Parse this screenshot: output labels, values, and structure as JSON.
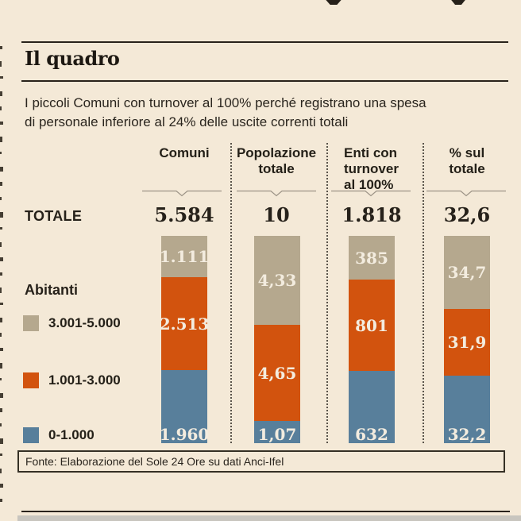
{
  "header": {
    "section_title": "Il quadro",
    "subtitle_line1": "I piccoli Comuni con turnover al 100% perché registrano una spesa",
    "subtitle_line2": "di personale inferiore al 24% delle uscite correnti totali"
  },
  "totals_row": {
    "label": "TOTALE"
  },
  "legend": {
    "title": "Abitanti"
  },
  "footer": {
    "source": "Fonte: Elaborazione del Sole 24 Ore su dati Anci-Ifel"
  },
  "colors": {
    "background": "#f4e9d7",
    "band_3001_5000": "#b5a88e",
    "band_1001_3000": "#d2530e",
    "band_0_1000": "#587f9b",
    "text_dark": "#26211a",
    "bar_label": "#f3ecdf"
  },
  "chart_data": {
    "type": "bar",
    "stacked": true,
    "title": "Il quadro",
    "subtitle": "I piccoli Comuni con turnover al 100% perché registrano una spesa di personale inferiore al 24% delle uscite correnti totali",
    "legend_title": "Abitanti",
    "legend_position": "left",
    "series": [
      {
        "name": "3.001-5.000",
        "color": "#b5a88e"
      },
      {
        "name": "1.001-3.000",
        "color": "#d2530e"
      },
      {
        "name": "0-1.000",
        "color": "#587f9b"
      }
    ],
    "total_row_label": "TOTALE",
    "columns": [
      {
        "header_lines": [
          "Comuni"
        ],
        "total": {
          "value": 5584,
          "label": "5.584"
        },
        "segments": [
          {
            "series": "3.001-5.000",
            "value": 1111,
            "label": "1.111"
          },
          {
            "series": "1.001-3.000",
            "value": 2513,
            "label": "2.513"
          },
          {
            "series": "0-1.000",
            "value": 1960,
            "label": "1.960"
          }
        ]
      },
      {
        "header_lines": [
          "Popolazione",
          "totale"
        ],
        "total": {
          "value": 10,
          "label": "10"
        },
        "segments": [
          {
            "series": "3.001-5.000",
            "value": 4.33,
            "label": "4,33"
          },
          {
            "series": "1.001-3.000",
            "value": 4.65,
            "label": "4,65"
          },
          {
            "series": "0-1.000",
            "value": 1.07,
            "label": "1,07"
          }
        ]
      },
      {
        "header_lines": [
          "Enti con",
          "turnover",
          "al 100%"
        ],
        "total": {
          "value": 1818,
          "label": "1.818"
        },
        "segments": [
          {
            "series": "3.001-5.000",
            "value": 385,
            "label": "385"
          },
          {
            "series": "1.001-3.000",
            "value": 801,
            "label": "801"
          },
          {
            "series": "0-1.000",
            "value": 632,
            "label": "632"
          }
        ]
      },
      {
        "header_lines": [
          "% sul",
          "totale"
        ],
        "total": {
          "value": 32.6,
          "label": "32,6"
        },
        "segments": [
          {
            "series": "3.001-5.000",
            "value": 34.7,
            "label": "34,7"
          },
          {
            "series": "1.001-3.000",
            "value": 31.9,
            "label": "31,9"
          },
          {
            "series": "0-1.000",
            "value": 32.2,
            "label": "32,2"
          }
        ]
      }
    ],
    "source": "Fonte: Elaborazione del Sole 24 Ore su dati Anci-Ifel"
  }
}
